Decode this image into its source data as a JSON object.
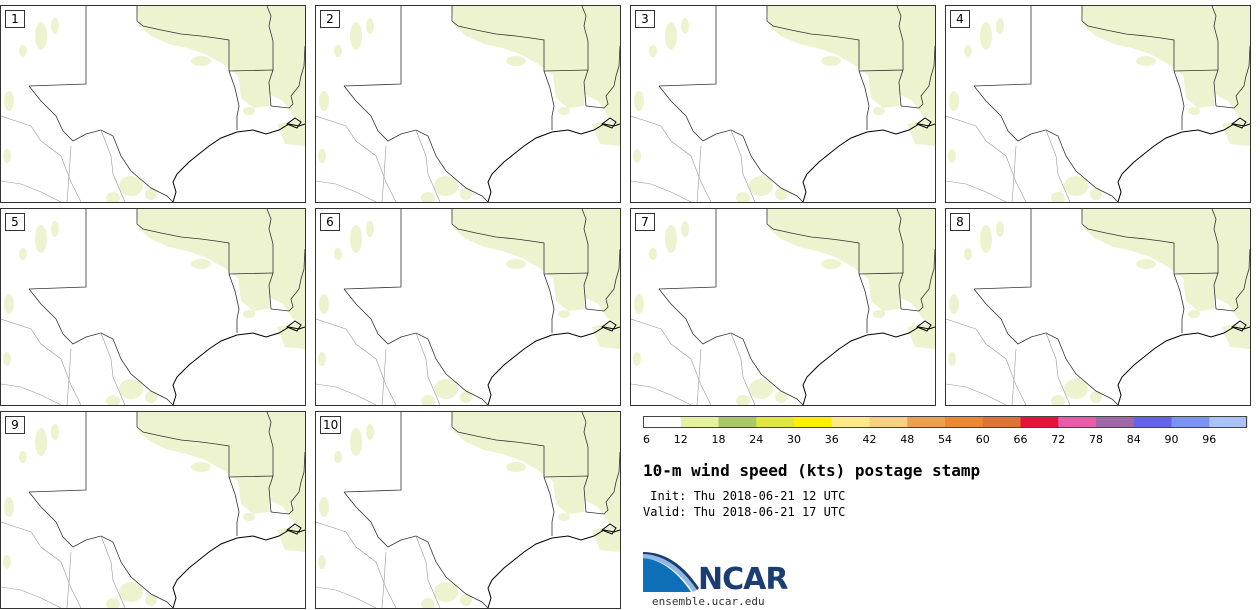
{
  "panels": [
    {
      "label": "1"
    },
    {
      "label": "2"
    },
    {
      "label": "3"
    },
    {
      "label": "4"
    },
    {
      "label": "5"
    },
    {
      "label": "6"
    },
    {
      "label": "7"
    },
    {
      "label": "8"
    },
    {
      "label": "9"
    },
    {
      "label": "10"
    }
  ],
  "colorbar": {
    "ticks": [
      "6",
      "12",
      "18",
      "24",
      "30",
      "36",
      "42",
      "48",
      "54",
      "60",
      "66",
      "72",
      "78",
      "84",
      "90",
      "96"
    ],
    "colors": [
      "#ffffff",
      "#e6f0a3",
      "#a8c86a",
      "#dfe83a",
      "#fff000",
      "#fde88e",
      "#f9cf86",
      "#eba054",
      "#e8893a",
      "#d9743c",
      "#e8103d",
      "#e55ca8",
      "#9e68a8",
      "#6563e8",
      "#7b95ef",
      "#a9c2f7"
    ]
  },
  "title": "10-m wind speed (kts) postage stamp",
  "init_text": " Init: Thu 2018-06-21 12 UTC",
  "valid_text": "Valid: Thu 2018-06-21 17 UTC",
  "logo": {
    "text": "NCAR",
    "url": "ensemble.ucar.edu"
  }
}
